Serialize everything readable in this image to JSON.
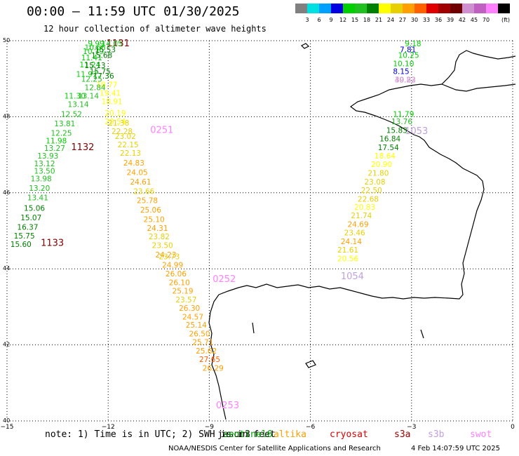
{
  "header": {
    "title": "00:00 – 11:59 UTC 01/30/2025",
    "subtitle": "12 hour collection of altimeter wave heights"
  },
  "legend": {
    "unit": "(ft)",
    "levels": [
      "3",
      "6",
      "9",
      "12",
      "15",
      "18",
      "21",
      "24",
      "27",
      "30",
      "33",
      "36",
      "39",
      "42",
      "45",
      "70"
    ],
    "colors": [
      "#808080",
      "#00e0e0",
      "#00a0ff",
      "#0000e0",
      "#00d000",
      "#20c020",
      "#008000",
      "#ffff00",
      "#e8d000",
      "#ffa000",
      "#ff6000",
      "#e00000",
      "#a00000",
      "#700000",
      "#d090d0",
      "#c060c0",
      "#ff80ff",
      "#000000"
    ]
  },
  "axes": {
    "lon_labels": [
      "−15",
      "−12",
      "−9",
      "−6",
      "−3",
      "0"
    ],
    "lat_labels": [
      "50",
      "48",
      "46",
      "44",
      "42",
      "40"
    ]
  },
  "tracks": [
    {
      "id": "1131",
      "color": "#800000",
      "label_lon": -12.05,
      "label_lat": 49.85,
      "points": [
        [
          -12.6,
          49.85,
          "9.99"
        ],
        [
          -12.7,
          49.75,
          "10.66"
        ],
        [
          -12.75,
          49.65,
          "10.79"
        ],
        [
          -12.8,
          49.48,
          "11.41"
        ],
        [
          -12.85,
          49.3,
          "11.24"
        ],
        [
          -12.95,
          49.05,
          "11.97"
        ],
        [
          -13.3,
          48.48,
          "11.30"
        ],
        [
          -13.85,
          47.3,
          "11.98"
        ]
      ]
    },
    {
      "id": "1132",
      "color": "#800000",
      "label_lon": -13.1,
      "label_lat": 47.12,
      "points": [
        [
          -12.7,
          49.28,
          "15.13"
        ],
        [
          -12.45,
          49.0,
          "17.36"
        ],
        [
          -12.35,
          48.77,
          "18.77"
        ],
        [
          -12.25,
          48.55,
          "19.41"
        ],
        [
          -12.2,
          48.33,
          "18.91"
        ],
        [
          -12.1,
          48.03,
          "20.19"
        ],
        [
          -12.1,
          47.8,
          "20.54"
        ]
      ]
    },
    {
      "id": "1133",
      "color": "#800000",
      "label_lon": -14.0,
      "label_lat": 44.6,
      "points": [
        [
          -12.55,
          49.12,
          "15.75"
        ]
      ]
    },
    {
      "id": "0251",
      "color": "#ff80ff",
      "label_lon": -10.75,
      "label_lat": 47.57,
      "points": [
        [
          -12.2,
          49.85,
          "14.05"
        ],
        [
          -12.4,
          49.7,
          "15.53"
        ],
        [
          -12.5,
          49.55,
          "15.68"
        ],
        [
          -12.8,
          48.92,
          "12.25"
        ],
        [
          -12.7,
          48.7,
          "12.84"
        ],
        [
          -12.9,
          48.48,
          "13.14"
        ],
        [
          -13.2,
          48.26,
          "13.14"
        ],
        [
          -13.4,
          48.0,
          "12.52"
        ],
        [
          -13.6,
          47.75,
          "13.81"
        ],
        [
          -13.7,
          47.5,
          "12.25"
        ],
        [
          -13.9,
          47.1,
          "13.27"
        ],
        [
          -14.1,
          46.9,
          "13.93"
        ],
        [
          -14.2,
          46.7,
          "13.12"
        ],
        [
          -14.2,
          46.5,
          "13.50"
        ],
        [
          -14.3,
          46.3,
          "13.98"
        ],
        [
          -14.35,
          46.05,
          "13.20"
        ],
        [
          -14.4,
          45.8,
          "13.41"
        ],
        [
          -14.5,
          45.53,
          "15.06"
        ],
        [
          -14.6,
          45.28,
          "15.07"
        ],
        [
          -14.7,
          45.03,
          "16.37"
        ],
        [
          -14.8,
          44.8,
          "15.75"
        ],
        [
          -14.9,
          44.58,
          "15.60"
        ]
      ]
    },
    {
      "id": "0252",
      "color": "#ff80ff",
      "label_lon": -8.9,
      "label_lat": 43.65,
      "points": [
        [
          -12.0,
          47.77,
          "21.38"
        ],
        [
          -11.9,
          47.55,
          "22.28"
        ],
        [
          -11.8,
          47.42,
          "23.02"
        ],
        [
          -11.72,
          47.2,
          "22.15"
        ],
        [
          -11.65,
          46.97,
          "22.13"
        ],
        [
          -11.55,
          46.72,
          "24.83"
        ],
        [
          -11.45,
          46.47,
          "24.05"
        ],
        [
          -11.35,
          46.22,
          "24.61"
        ],
        [
          -11.25,
          45.97,
          "23.66"
        ],
        [
          -11.15,
          45.73,
          "25.78"
        ],
        [
          -11.05,
          45.48,
          "25.06"
        ],
        [
          -10.95,
          45.23,
          "25.10"
        ],
        [
          -10.85,
          45.0,
          "24.31"
        ],
        [
          -10.8,
          44.78,
          "23.82"
        ],
        [
          -10.7,
          44.55,
          "23.50"
        ],
        [
          -10.6,
          44.3,
          "24.23"
        ],
        [
          -10.5,
          44.25,
          "23.73"
        ]
      ]
    },
    {
      "id": "0253",
      "color": "#ff80ff",
      "label_lon": -8.8,
      "label_lat": 40.33,
      "points": [
        [
          -10.4,
          44.03,
          "24.99"
        ],
        [
          -10.3,
          43.8,
          "26.06"
        ],
        [
          -10.2,
          43.57,
          "26.10"
        ],
        [
          -10.1,
          43.35,
          "25.19"
        ],
        [
          -10.0,
          43.12,
          "23.57"
        ],
        [
          -9.9,
          42.9,
          "26.30"
        ],
        [
          -9.8,
          42.67,
          "24.57"
        ],
        [
          -9.7,
          42.45,
          "25.14"
        ],
        [
          -9.6,
          42.22,
          "26.50"
        ],
        [
          -9.5,
          42.0,
          "25.71"
        ],
        [
          -9.4,
          41.77,
          "25.62"
        ],
        [
          -9.3,
          41.55,
          "27.65"
        ],
        [
          -9.2,
          41.32,
          "26.29"
        ]
      ]
    },
    {
      "id": "1053",
      "color": "#c0a0e0",
      "label_lon": -3.2,
      "label_lat": 47.55,
      "points": [
        [
          -3.2,
          49.85,
          "9.18"
        ],
        [
          -3.35,
          49.7,
          "7.81"
        ],
        [
          -3.4,
          49.55,
          "10.25"
        ],
        [
          -3.55,
          49.33,
          "10.10"
        ],
        [
          -3.55,
          49.12,
          "8.15"
        ],
        [
          -3.5,
          48.9,
          "39.22"
        ],
        [
          -3.5,
          48.9,
          "40.83"
        ],
        [
          -3.55,
          48.0,
          "11.79"
        ],
        [
          -3.6,
          47.8,
          "13.76"
        ],
        [
          -3.75,
          47.57,
          "15.83"
        ],
        [
          -3.95,
          47.35,
          "16.84"
        ]
      ]
    },
    {
      "id": "1054",
      "color": "#c0a0e0",
      "label_lon": -5.1,
      "label_lat": 43.73,
      "points": [
        [
          -4.0,
          47.12,
          "17.54"
        ],
        [
          -4.1,
          46.9,
          "18.64"
        ],
        [
          -4.2,
          46.68,
          "20.90"
        ],
        [
          -4.3,
          46.45,
          "21.80"
        ],
        [
          -4.4,
          46.22,
          "23.08"
        ],
        [
          -4.5,
          46.0,
          "22.50"
        ],
        [
          -4.6,
          45.77,
          "22.68"
        ],
        [
          -4.7,
          45.55,
          "20.83"
        ],
        [
          -4.8,
          45.33,
          "21.74"
        ],
        [
          -4.9,
          45.1,
          "24.69"
        ],
        [
          -5.0,
          44.88,
          "23.46"
        ],
        [
          -5.1,
          44.65,
          "24.14"
        ],
        [
          -5.2,
          44.43,
          "21.61"
        ],
        [
          -5.2,
          44.2,
          "20.56"
        ]
      ]
    }
  ],
  "footer": {
    "note": "note: 1) Time is in UTC; 2) SWH is in feet",
    "satellites": [
      {
        "name": "jason3",
        "color": "#000000"
      },
      {
        "name": "sentinel6",
        "color": "#00a000"
      },
      {
        "name": "altika",
        "color": "#ffa000"
      },
      {
        "name": "cryosat",
        "color": "#e00000"
      },
      {
        "name": "s3a",
        "color": "#a00000"
      },
      {
        "name": "s3b",
        "color": "#c0a0e0"
      },
      {
        "name": "swot",
        "color": "#ff80ff"
      }
    ],
    "credit": "NOAA/NESDIS Center for Satellite Applications and Research",
    "timestamp": "4 Feb 14:07:59 UTC 2025"
  }
}
